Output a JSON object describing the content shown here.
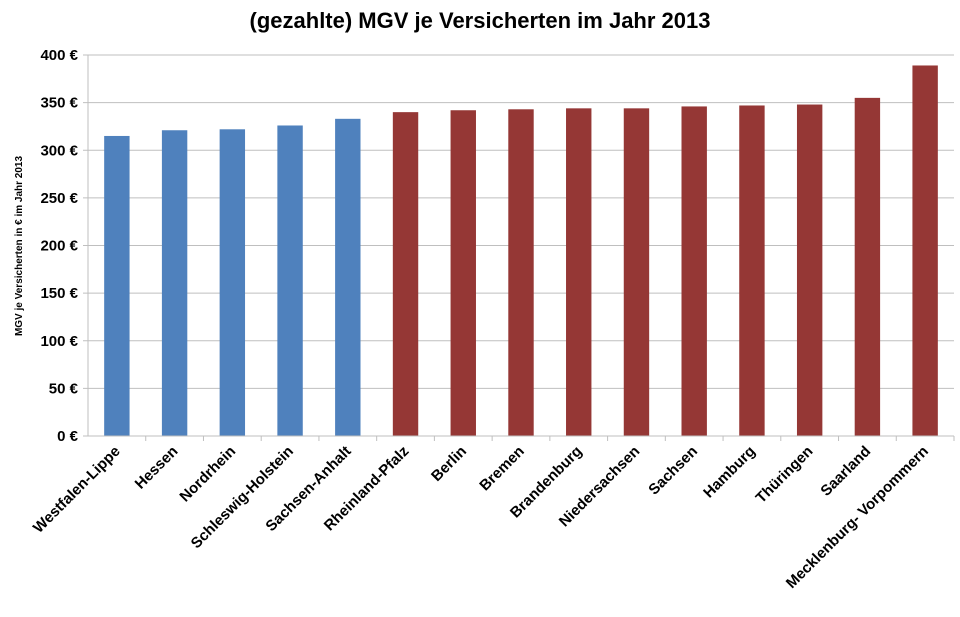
{
  "chart_data": {
    "type": "bar",
    "title": "(gezahlte) MGV je Versicherten im Jahr 2013",
    "xlabel": "",
    "ylabel": "MGV je Versicherten in € im Jahr 2013",
    "ylim": [
      0,
      400
    ],
    "yticks": [
      "0 €",
      "50 €",
      "100 €",
      "150 €",
      "200 €",
      "250 €",
      "300 €",
      "350 €",
      "400 €"
    ],
    "grid": true,
    "categories": [
      "Westfalen-Lippe",
      "Hessen",
      "Nordrhein",
      "Schleswig-Holstein",
      "Sachsen-Anhalt",
      "Rheinland-Pfalz",
      "Berlin",
      "Bremen",
      "Brandenburg",
      "Niedersachsen",
      "Sachsen",
      "Hamburg",
      "Thüringen",
      "Saarland",
      "Mecklenburg- Vorpommern"
    ],
    "values": [
      315,
      321,
      322,
      326,
      333,
      340,
      342,
      343,
      344,
      344,
      346,
      347,
      348,
      355,
      389
    ],
    "bar_colors": [
      "#4F81BD",
      "#4F81BD",
      "#4F81BD",
      "#4F81BD",
      "#4F81BD",
      "#953735",
      "#953735",
      "#953735",
      "#953735",
      "#953735",
      "#953735",
      "#953735",
      "#953735",
      "#953735",
      "#953735"
    ],
    "grid_color": "#BFBFBF",
    "axis_color": "#BFBFBF"
  }
}
